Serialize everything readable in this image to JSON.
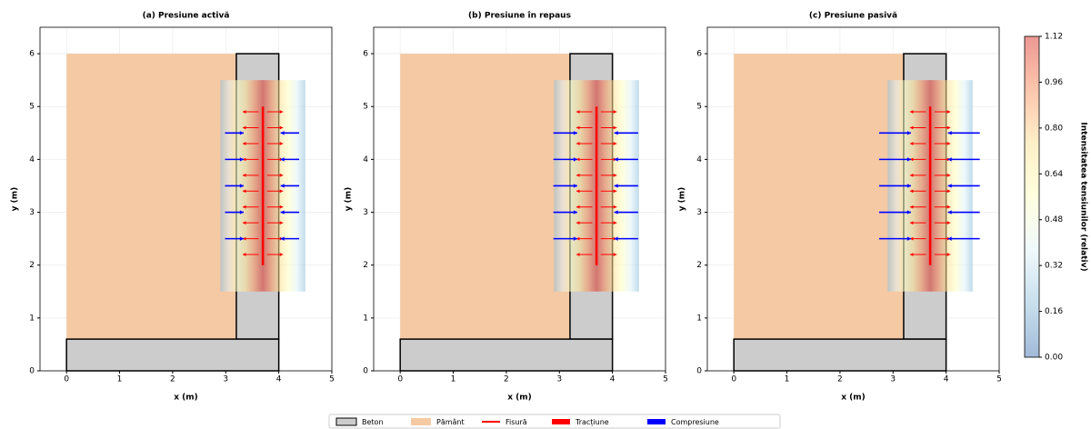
{
  "chart_data": [
    {
      "type": "wall_stress",
      "title": "(a) Presiune activă",
      "xlabel": "x (m)",
      "ylabel": "y (m)",
      "xlim": [
        -0.5,
        5
      ],
      "ylim": [
        0,
        6.5
      ],
      "xticks": [
        0,
        1,
        2,
        3,
        4,
        5
      ],
      "yticks": [
        0,
        1,
        2,
        3,
        4,
        5,
        6
      ],
      "grid": true,
      "soil": {
        "x": [
          0,
          3.2
        ],
        "y": [
          0.6,
          6
        ]
      },
      "wall": {
        "x": [
          3.2,
          4
        ],
        "y": [
          0.6,
          6
        ]
      },
      "footing": {
        "x": [
          0,
          4
        ],
        "y": [
          0,
          0.6
        ]
      },
      "crack": {
        "x": 3.7,
        "y": [
          2,
          5
        ]
      },
      "field": {
        "x": [
          2.9,
          4.5
        ],
        "y": [
          1.5,
          5.5
        ]
      },
      "tension_y": [
        2.2,
        2.5,
        2.8,
        3.1,
        3.4,
        3.7,
        4.0,
        4.3,
        4.6,
        4.9
      ],
      "tension_length": 0.3,
      "compression_y": [
        2.5,
        3,
        3.5,
        4,
        4.5
      ],
      "compression_length": 0.35
    },
    {
      "type": "wall_stress",
      "title": "(b) Presiune în repaus",
      "xlabel": "x (m)",
      "ylabel": "y (m)",
      "xlim": [
        -0.5,
        5
      ],
      "ylim": [
        0,
        6.5
      ],
      "xticks": [
        0,
        1,
        2,
        3,
        4,
        5
      ],
      "yticks": [
        0,
        1,
        2,
        3,
        4,
        5,
        6
      ],
      "grid": true,
      "soil": {
        "x": [
          0,
          3.2
        ],
        "y": [
          0.6,
          6
        ]
      },
      "wall": {
        "x": [
          3.2,
          4
        ],
        "y": [
          0.6,
          6
        ]
      },
      "footing": {
        "x": [
          0,
          4
        ],
        "y": [
          0,
          0.6
        ]
      },
      "crack": {
        "x": 3.7,
        "y": [
          2,
          5
        ]
      },
      "field": {
        "x": [
          2.9,
          4.5
        ],
        "y": [
          1.5,
          5.5
        ]
      },
      "tension_y": [
        2.2,
        2.5,
        2.8,
        3.1,
        3.4,
        3.7,
        4.0,
        4.3,
        4.6,
        4.9
      ],
      "tension_length": 0.3,
      "compression_y": [
        2.5,
        3,
        3.5,
        4,
        4.5
      ],
      "compression_length": 0.45
    },
    {
      "type": "wall_stress",
      "title": "(c) Presiune pasivă",
      "xlabel": "x (m)",
      "ylabel": "y (m)",
      "xlim": [
        -0.5,
        5
      ],
      "ylim": [
        0,
        6.5
      ],
      "xticks": [
        0,
        1,
        2,
        3,
        4,
        5
      ],
      "yticks": [
        0,
        1,
        2,
        3,
        4,
        5,
        6
      ],
      "grid": true,
      "soil": {
        "x": [
          0,
          3.2
        ],
        "y": [
          0.6,
          6
        ]
      },
      "wall": {
        "x": [
          3.2,
          4
        ],
        "y": [
          0.6,
          6
        ]
      },
      "footing": {
        "x": [
          0,
          4
        ],
        "y": [
          0,
          0.6
        ]
      },
      "crack": {
        "x": 3.7,
        "y": [
          2,
          5
        ]
      },
      "field": {
        "x": [
          2.9,
          4.5
        ],
        "y": [
          1.5,
          5.5
        ]
      },
      "tension_y": [
        2.2,
        2.5,
        2.8,
        3.1,
        3.4,
        3.7,
        4.0,
        4.3,
        4.6,
        4.9
      ],
      "tension_length": 0.3,
      "compression_y": [
        2.5,
        3,
        3.5,
        4,
        4.5
      ],
      "compression_length": 0.6
    },
    {
      "type": "colorbar",
      "label": "Intensitatea tensiunilor (relativ)",
      "ylim": [
        0,
        1.12
      ],
      "yticks": [
        {
          "value": 0,
          "label": "0.00"
        },
        {
          "value": 0.16,
          "label": "0.16"
        },
        {
          "value": 0.32,
          "label": "0.32"
        },
        {
          "value": 0.48,
          "label": "0.48"
        },
        {
          "value": 0.64,
          "label": "0.64"
        },
        {
          "value": 0.8,
          "label": "0.80"
        },
        {
          "value": 0.96,
          "label": "0.96"
        },
        {
          "value": 1.12,
          "label": "1.12"
        }
      ],
      "colors": [
        "#4575b4",
        "#91bfdb",
        "#e0f3f8",
        "#ffffbf",
        "#fee090",
        "#fc8d59",
        "#d73027"
      ]
    }
  ],
  "legend": {
    "items": [
      {
        "label": "Beton",
        "color": "#cccccc"
      },
      {
        "label": "Pământ",
        "color": "#f5c9a3"
      },
      {
        "label": "Fisură",
        "color": "#ff0000"
      },
      {
        "label": "Tracțiune",
        "color": "#ff0000"
      },
      {
        "label": "Compresiune",
        "color": "#0000ff"
      }
    ]
  }
}
